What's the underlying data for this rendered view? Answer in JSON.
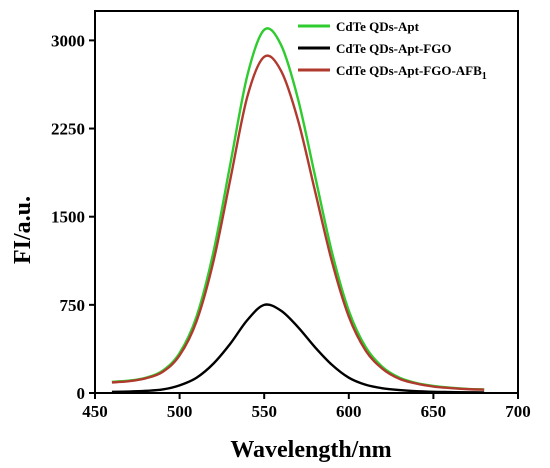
{
  "chart_data": {
    "type": "line",
    "xlabel": "Wavelength/nm",
    "ylabel": "FI/a.u.",
    "xlim": [
      450,
      700
    ],
    "ylim": [
      0,
      3250
    ],
    "x_ticks": [
      450,
      500,
      550,
      600,
      650,
      700
    ],
    "y_ticks": [
      0,
      750,
      1500,
      2250,
      3000
    ],
    "grid": false,
    "legend_position": "top-right",
    "series": [
      {
        "name": "CdTe QDs-Apt",
        "name_subscript": "",
        "color": "#2ecc2e",
        "x": [
          460,
          470,
          480,
          490,
          500,
          510,
          520,
          530,
          540,
          550,
          560,
          570,
          580,
          590,
          600,
          610,
          620,
          630,
          640,
          650,
          660,
          670,
          680
        ],
        "y": [
          95,
          105,
          130,
          190,
          340,
          650,
          1200,
          1950,
          2700,
          3090,
          2960,
          2500,
          1850,
          1200,
          700,
          390,
          220,
          130,
          85,
          60,
          45,
          35,
          30
        ]
      },
      {
        "name": "CdTe QDs-Apt-FGO",
        "name_subscript": "",
        "color": "#000000",
        "x": [
          460,
          470,
          480,
          490,
          500,
          510,
          520,
          530,
          540,
          550,
          560,
          570,
          580,
          590,
          600,
          610,
          620,
          630,
          640,
          650,
          660,
          670,
          680
        ],
        "y": [
          10,
          12,
          18,
          30,
          65,
          130,
          250,
          420,
          620,
          750,
          700,
          560,
          390,
          240,
          130,
          70,
          40,
          25,
          15,
          10,
          8,
          6,
          5
        ]
      },
      {
        "name": "CdTe QDs-Apt-FGO-AFB",
        "name_subscript": "1",
        "color": "#b03a2e",
        "x": [
          460,
          470,
          480,
          490,
          500,
          510,
          520,
          530,
          540,
          550,
          560,
          570,
          580,
          590,
          600,
          610,
          620,
          630,
          640,
          650,
          660,
          670,
          680
        ],
        "y": [
          90,
          100,
          125,
          180,
          320,
          610,
          1120,
          1820,
          2520,
          2860,
          2740,
          2320,
          1720,
          1120,
          650,
          360,
          205,
          120,
          80,
          55,
          42,
          33,
          28
        ]
      }
    ]
  }
}
